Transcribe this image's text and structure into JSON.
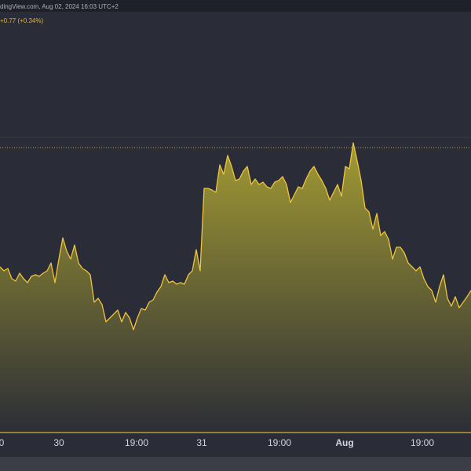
{
  "chart_data": {
    "type": "area",
    "source_line": "dingView.com, Aug 02, 2024 16:03 UTC+2",
    "change": "+0.77 (+0.34%)",
    "color": "#f0c53a",
    "fill_top": "#a29a33",
    "fill_bottom": "#2c2e36",
    "values": [
      210,
      205,
      208,
      195,
      192,
      202,
      195,
      190,
      198,
      200,
      198,
      202,
      205,
      215,
      190,
      220,
      247,
      230,
      220,
      238,
      215,
      208,
      205,
      200,
      165,
      170,
      162,
      140,
      145,
      150,
      155,
      140,
      152,
      145,
      130,
      145,
      157,
      155,
      165,
      168,
      178,
      185,
      200,
      190,
      192,
      188,
      190,
      188,
      200,
      205,
      232,
      205,
      310,
      310,
      308,
      305,
      340,
      328,
      352,
      338,
      320,
      322,
      332,
      338,
      315,
      322,
      315,
      318,
      312,
      310,
      318,
      320,
      325,
      315,
      292,
      302,
      312,
      310,
      322,
      332,
      338,
      328,
      320,
      310,
      295,
      305,
      315,
      300,
      338,
      335,
      368,
      345,
      320,
      285,
      280,
      258,
      278,
      250,
      255,
      245,
      220,
      235,
      235,
      228,
      215,
      210,
      205,
      210,
      195,
      185,
      180,
      165,
      185,
      200,
      170,
      160,
      172,
      158,
      165,
      172,
      180
    ],
    "ylim": [
      0,
      535
    ],
    "xticks": [
      {
        "value": 0.4,
        "label": "0"
      },
      {
        "value": 15,
        "label": "30"
      },
      {
        "value": 34.8,
        "label": "19:00"
      },
      {
        "value": 51.4,
        "label": "31"
      },
      {
        "value": 71.2,
        "label": "19:00"
      },
      {
        "value": 87.8,
        "label": "Aug"
      },
      {
        "value": 107.6,
        "label": "19:00"
      }
    ]
  }
}
